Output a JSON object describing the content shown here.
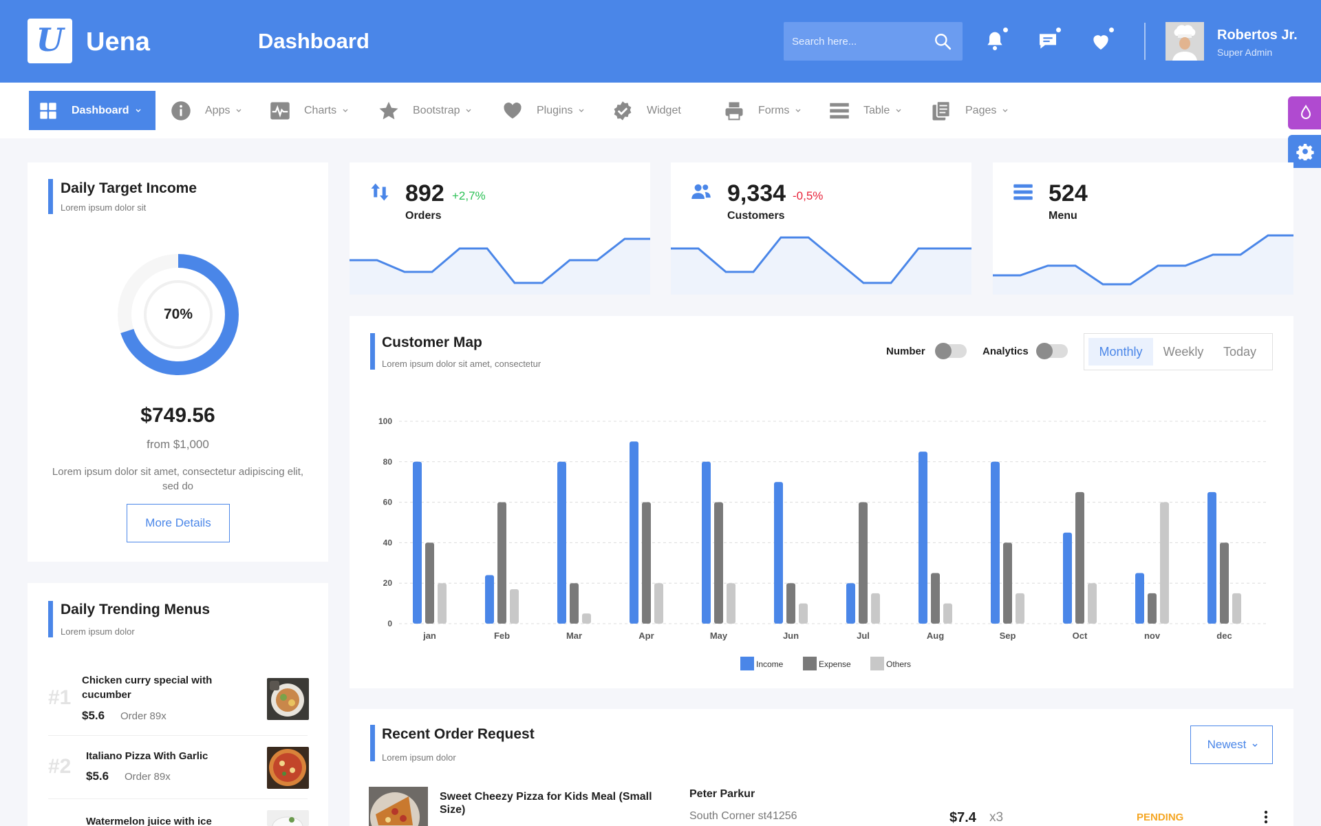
{
  "header": {
    "logo_letter": "U",
    "brand": "Uena",
    "page_title": "Dashboard",
    "search_placeholder": "Search here...",
    "user_name": "Robertos Jr.",
    "user_role": "Super Admin"
  },
  "nav": {
    "items": [
      {
        "label": "Dashboard",
        "icon": "grid-icon"
      },
      {
        "label": "Apps",
        "icon": "info-icon"
      },
      {
        "label": "Charts",
        "icon": "pulse-icon"
      },
      {
        "label": "Bootstrap",
        "icon": "star-icon"
      },
      {
        "label": "Plugins",
        "icon": "heart-icon"
      },
      {
        "label": "Widget",
        "icon": "badge-check-icon"
      },
      {
        "label": "Forms",
        "icon": "printer-icon"
      },
      {
        "label": "Table",
        "icon": "list-icon"
      },
      {
        "label": "Pages",
        "icon": "copy-icon"
      }
    ]
  },
  "income": {
    "title": "Daily Target Income",
    "subtitle": "Lorem ipsum dolor sit",
    "percent_label": "70%",
    "percent": 70,
    "amount": "$749.56",
    "from": "from $1,000",
    "desc": "Lorem ipsum dolor sit amet, consectetur adipiscing elit, sed do",
    "button": "More Details"
  },
  "stats": [
    {
      "value": "892",
      "change": "+2,7%",
      "label": "Orders",
      "change_color": "#2bc155"
    },
    {
      "value": "9,334",
      "change": "-0,5%",
      "label": "Customers",
      "change_color": "#e8243b"
    },
    {
      "value": "524",
      "change": "",
      "label": "Menu"
    }
  ],
  "customer_map": {
    "title": "Customer Map",
    "subtitle": "Lorem ipsum dolor sit amet, consectetur",
    "toggle_number": "Number",
    "toggle_analytics": "Analytics",
    "tabs": [
      "Monthly",
      "Weekly",
      "Today"
    ]
  },
  "chart_data": {
    "type": "bar",
    "categories": [
      "jan",
      "Feb",
      "Mar",
      "Apr",
      "May",
      "Jun",
      "Jul",
      "Aug",
      "Sep",
      "Oct",
      "nov",
      "dec"
    ],
    "series": [
      {
        "name": "Income",
        "values": [
          80,
          24,
          80,
          90,
          80,
          70,
          20,
          85,
          80,
          45,
          25,
          65
        ]
      },
      {
        "name": "Expense",
        "values": [
          40,
          60,
          20,
          60,
          60,
          20,
          60,
          25,
          40,
          65,
          15,
          40
        ]
      },
      {
        "name": "Others",
        "values": [
          20,
          17,
          5,
          20,
          20,
          10,
          15,
          10,
          15,
          20,
          60,
          15
        ]
      }
    ],
    "yticks": [
      0,
      20,
      40,
      60,
      80,
      100
    ],
    "ylim": [
      0,
      100
    ],
    "grid": true,
    "legend_position": "bottom-center",
    "colors": [
      "#4a86e8",
      "#7a7a7a",
      "#c8c8c8"
    ]
  },
  "trending": {
    "title": "Daily Trending Menus",
    "subtitle": "Lorem ipsum dolor",
    "items": [
      {
        "rank": "#1",
        "name": "Chicken curry special with cucumber",
        "price": "$5.6",
        "order": "Order 89x"
      },
      {
        "rank": "#2",
        "name": "Italiano Pizza With Garlic",
        "price": "$5.6",
        "order": "Order 89x"
      },
      {
        "rank": "",
        "name": "Watermelon juice with ice",
        "price": "",
        "order": ""
      }
    ]
  },
  "recent_orders": {
    "title": "Recent Order Request",
    "subtitle": "Lorem ipsum dolor",
    "filter": "Newest",
    "rows": [
      {
        "dish": "Sweet Cheezy Pizza for Kids Meal (Small Size)",
        "customer": "Peter Parkur",
        "address": "South Corner st41256",
        "price": "$7.4",
        "qty": "x3",
        "status": "PENDING"
      }
    ]
  }
}
